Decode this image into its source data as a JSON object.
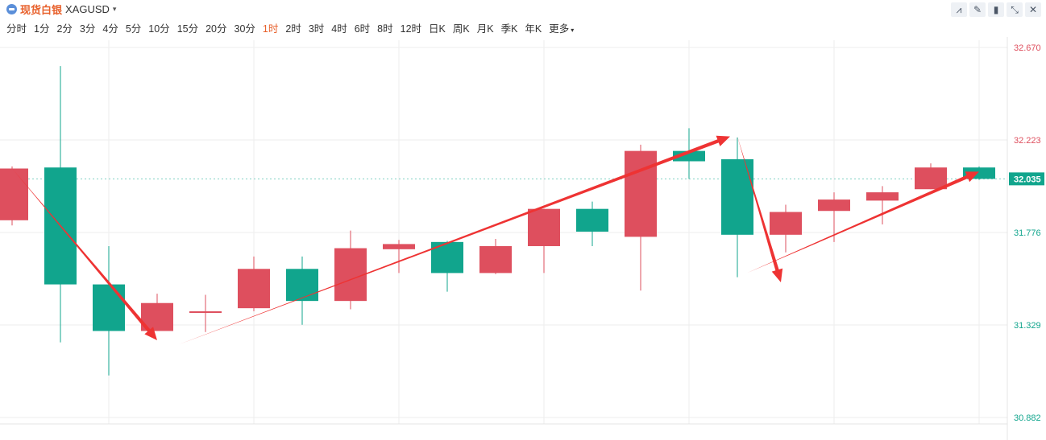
{
  "header": {
    "name": "现货白银",
    "symbol": "XAGUSD",
    "tools": [
      "line-tool-icon",
      "draw-tool-icon",
      "candle-type-icon",
      "collapse-icon",
      "close-icon"
    ]
  },
  "periods": [
    "分时",
    "1分",
    "2分",
    "3分",
    "4分",
    "5分",
    "10分",
    "15分",
    "20分",
    "30分",
    "1时",
    "2时",
    "3时",
    "4时",
    "6时",
    "8时",
    "12时",
    "日K",
    "周K",
    "月K",
    "季K",
    "年K",
    "更多"
  ],
  "active_period": "1时",
  "colors": {
    "up": "#de4f5e",
    "down": "#11a58d",
    "accent": "#e8612c",
    "arrow": "#ee3333",
    "grid": "#eeeeee"
  },
  "chart_data": {
    "type": "candlestick",
    "symbol": "XAGUSD",
    "y_ticks": [
      "32.670",
      "32.223",
      "31.776",
      "31.329",
      "30.882"
    ],
    "y_tick_values": [
      32.67,
      32.223,
      31.776,
      31.329,
      30.882
    ],
    "ylim": [
      30.882,
      32.67
    ],
    "last_price": "32.035",
    "last_price_value": 32.035,
    "grid": true,
    "candles": [
      {
        "open": 31.835,
        "close": 32.085,
        "high": 32.095,
        "low": 31.81
      },
      {
        "open": 32.09,
        "close": 31.525,
        "high": 32.58,
        "low": 31.245
      },
      {
        "open": 31.525,
        "close": 31.3,
        "high": 31.71,
        "low": 31.085
      },
      {
        "open": 31.3,
        "close": 31.435,
        "high": 31.48,
        "low": 31.3
      },
      {
        "open": 31.39,
        "close": 31.395,
        "high": 31.475,
        "low": 31.295
      },
      {
        "open": 31.41,
        "close": 31.6,
        "high": 31.66,
        "low": 31.395
      },
      {
        "open": 31.6,
        "close": 31.445,
        "high": 31.66,
        "low": 31.33
      },
      {
        "open": 31.445,
        "close": 31.7,
        "high": 31.785,
        "low": 31.405
      },
      {
        "open": 31.695,
        "close": 31.72,
        "high": 31.74,
        "low": 31.58
      },
      {
        "open": 31.73,
        "close": 31.58,
        "high": 31.735,
        "low": 31.49
      },
      {
        "open": 31.58,
        "close": 31.71,
        "high": 31.745,
        "low": 31.575
      },
      {
        "open": 31.71,
        "close": 31.89,
        "high": 31.89,
        "low": 31.58
      },
      {
        "open": 31.89,
        "close": 31.78,
        "high": 31.925,
        "low": 31.71
      },
      {
        "open": 31.755,
        "close": 32.17,
        "high": 32.2,
        "low": 31.495
      },
      {
        "open": 32.17,
        "close": 32.12,
        "high": 32.28,
        "low": 32.035
      },
      {
        "open": 32.13,
        "close": 31.765,
        "high": 32.235,
        "low": 31.56
      },
      {
        "open": 31.765,
        "close": 31.875,
        "high": 31.91,
        "low": 31.68
      },
      {
        "open": 31.88,
        "close": 31.935,
        "high": 31.97,
        "low": 31.73
      },
      {
        "open": 31.93,
        "close": 31.97,
        "high": 32.0,
        "low": 31.815
      },
      {
        "open": 31.985,
        "close": 32.09,
        "high": 32.11,
        "low": 31.985
      },
      {
        "open": 32.09,
        "close": 32.035,
        "high": 32.095,
        "low": 32.03
      }
    ],
    "annotations": [
      {
        "type": "arrow",
        "from": [
          0,
          32.085
        ],
        "to": [
          3,
          31.255
        ]
      },
      {
        "type": "arrow",
        "from": [
          3.45,
          31.235
        ],
        "to": [
          14.85,
          32.24
        ]
      },
      {
        "type": "arrow",
        "from": [
          15,
          32.24
        ],
        "to": [
          15.9,
          31.535
        ]
      },
      {
        "type": "arrow",
        "from": [
          15.2,
          31.58
        ],
        "to": [
          20.0,
          32.07
        ]
      }
    ]
  }
}
